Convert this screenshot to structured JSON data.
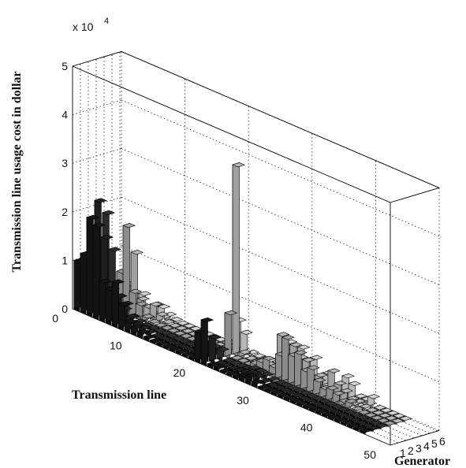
{
  "chart_data": {
    "type": "bar3d",
    "title": "",
    "xlabel": "Transmission line",
    "ylabel": "Transmission line usage cost in dollar",
    "zlabel": "Generator",
    "multiplier_label": "x 10",
    "multiplier_exponent": "4",
    "x_ticks": [
      "0",
      "10",
      "20",
      "30",
      "40",
      "50"
    ],
    "z_ticks": [
      "0",
      "1",
      "2",
      "3",
      "4",
      "5"
    ],
    "gen_ticks": [
      "1",
      "2",
      "3",
      "4",
      "5",
      "6"
    ],
    "xlim": [
      0,
      50
    ],
    "zlim": [
      0,
      5
    ],
    "generators": [
      1,
      2,
      3,
      4,
      5,
      6
    ],
    "grid": true,
    "series": [
      {
        "values": [
          1.0,
          1.2,
          2.0,
          1.9,
          0.8,
          0.7,
          0.9,
          0.5,
          0.2,
          0.15,
          0.1,
          0.05,
          0.0,
          0.0,
          0.0,
          0.0,
          0.0,
          0.0,
          0.0,
          0.6,
          0.9,
          0.05,
          0.05,
          0.02,
          0.0,
          0.0,
          0.1,
          0.15,
          0.08,
          0.02,
          0.0,
          0.0,
          0.0,
          0.0,
          0.0,
          0.0,
          0.0,
          0.0,
          0.0,
          0.0,
          0.0,
          0.0,
          0.0,
          0.0,
          0.0,
          0.0
        ]
      },
      {
        "values": [
          0.8,
          1.4,
          2.3,
          1.6,
          0.6,
          0.5,
          0.3,
          0.2,
          0.1,
          0.08,
          0.05,
          0.02,
          0.0,
          0.0,
          0.0,
          0.0,
          0.0,
          0.0,
          0.0,
          0.3,
          0.5,
          0.03,
          0.03,
          0.02,
          0.05,
          0.08,
          0.12,
          0.1,
          0.05,
          0.02,
          0.0,
          0.0,
          0.0,
          0.0,
          0.0,
          0.0,
          0.0,
          0.0,
          0.0,
          0.0,
          0.0,
          0.0,
          0.0,
          0.0,
          0.0,
          0.0
        ]
      },
      {
        "values": [
          0.6,
          1.0,
          2.0,
          1.3,
          0.4,
          0.3,
          0.1,
          0.05,
          0.03,
          0.02,
          0.01,
          0.0,
          0.0,
          0.0,
          0.0,
          0.0,
          0.0,
          0.0,
          0.0,
          0.2,
          0.2,
          0.02,
          0.02,
          0.01,
          0.05,
          0.1,
          0.1,
          0.08,
          0.04,
          0.02,
          0.0,
          0.0,
          0.0,
          0.0,
          0.0,
          0.0,
          0.0,
          0.0,
          0.0,
          0.0,
          0.0,
          0.0,
          0.0,
          0.0,
          0.0,
          0.0
        ]
      },
      {
        "values": [
          0.2,
          0.3,
          0.5,
          0.8,
          1.8,
          0.5,
          0.3,
          0.1,
          0.05,
          0.02,
          0.0,
          0.0,
          0.0,
          0.0,
          0.0,
          0.0,
          0.0,
          0.0,
          0.0,
          0.1,
          0.9,
          0.02,
          0.02,
          0.02,
          0.1,
          0.2,
          0.3,
          0.2,
          0.5,
          0.9,
          0.6,
          0.7,
          0.4,
          0.5,
          0.3,
          0.2,
          0.25,
          0.2,
          0.1,
          0.15,
          0.05,
          0.0,
          0.0,
          0.0,
          0.0,
          0.0
        ]
      },
      {
        "values": [
          0.15,
          0.2,
          0.3,
          0.5,
          1.2,
          0.3,
          0.2,
          0.3,
          0.15,
          0.05,
          0.0,
          0.0,
          0.0,
          0.0,
          0.0,
          0.0,
          0.0,
          0.0,
          0.0,
          0.2,
          3.9,
          0.1,
          0.02,
          0.02,
          0.05,
          0.08,
          0.1,
          0.8,
          0.6,
          0.7,
          0.5,
          0.5,
          0.2,
          0.3,
          0.15,
          0.5,
          0.3,
          0.2,
          0.1,
          0.1,
          0.05,
          0.0,
          0.0,
          0.0,
          0.0,
          0.0
        ]
      },
      {
        "values": [
          0.1,
          0.1,
          0.2,
          0.2,
          0.3,
          0.1,
          0.2,
          0.2,
          0.1,
          0.05,
          0.0,
          0.0,
          0.0,
          0.0,
          0.0,
          0.0,
          0.0,
          0.0,
          0.0,
          0.6,
          0.4,
          0.05,
          0.02,
          0.02,
          0.05,
          0.08,
          0.15,
          0.6,
          0.5,
          0.6,
          0.4,
          0.5,
          0.2,
          0.3,
          0.1,
          0.2,
          0.4,
          0.3,
          0.1,
          0.1,
          0.2,
          0.0,
          0.0,
          0.0,
          0.0,
          0.0
        ]
      }
    ]
  },
  "colors": {
    "background": "#ffffff",
    "box_line": "#000000",
    "grid": "#222222",
    "gen_fill": [
      "#141414",
      "#1e1e1e",
      "#2a2a2a",
      "#8c8c8c",
      "#a0a0a0",
      "#b8b8b8"
    ]
  }
}
